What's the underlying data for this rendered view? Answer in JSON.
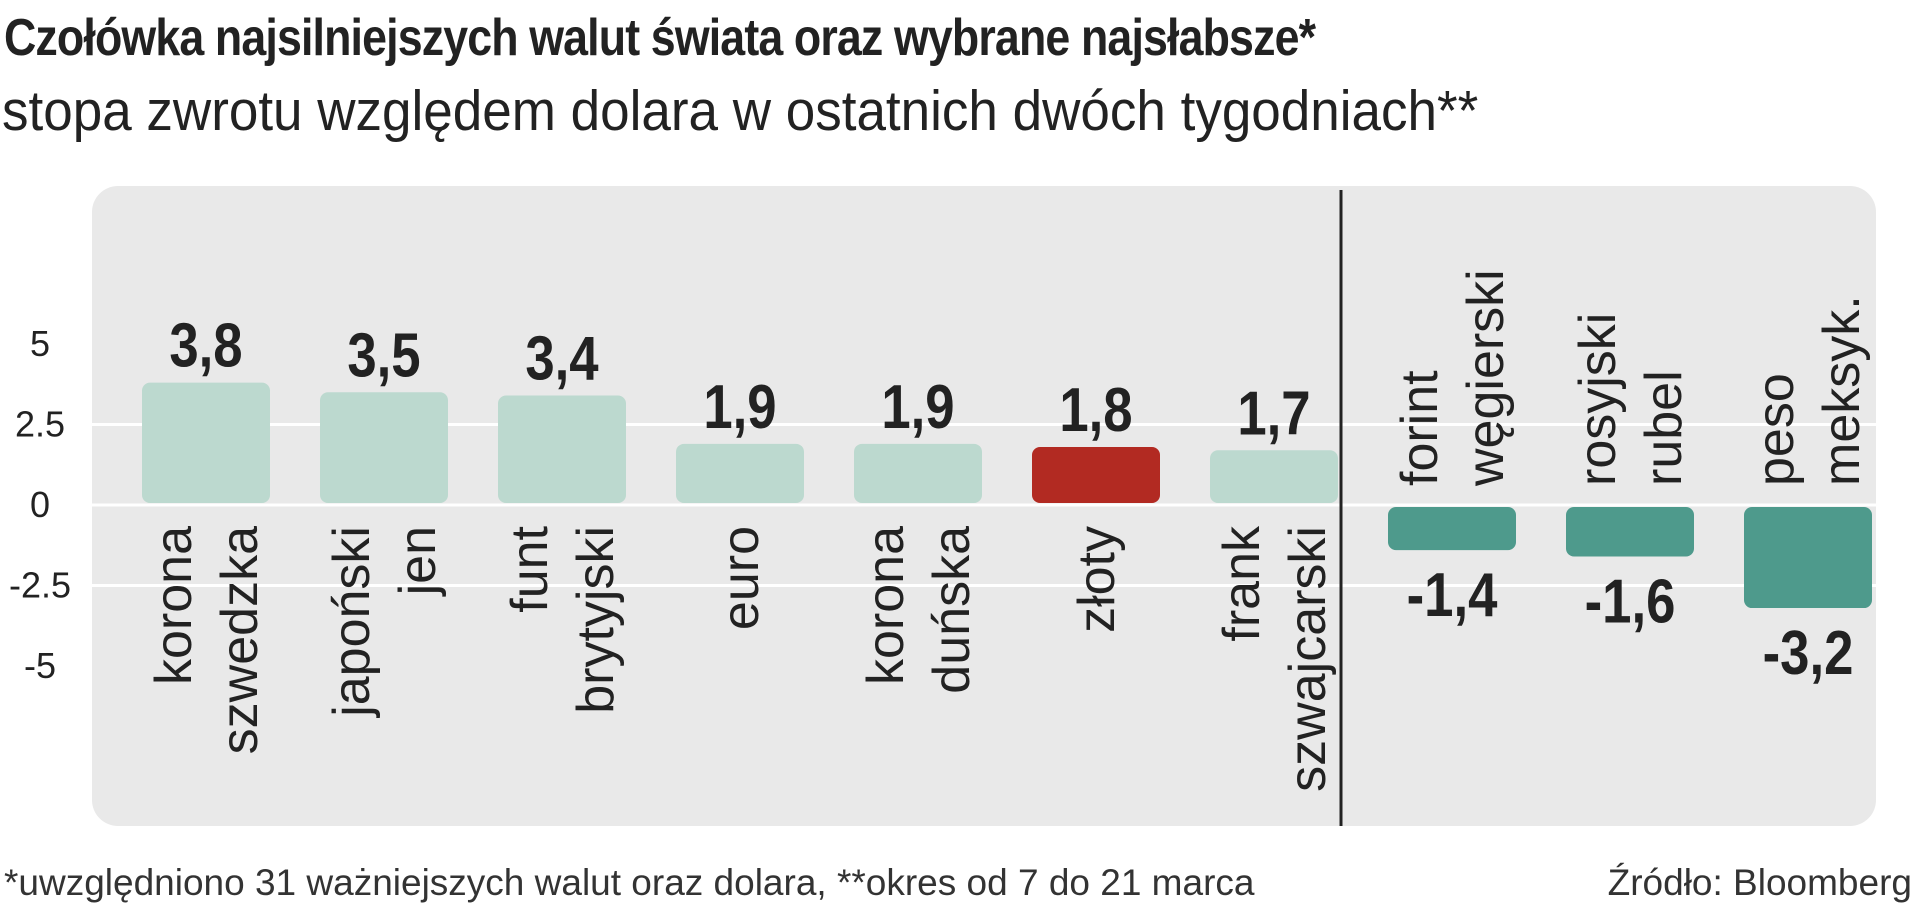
{
  "header": {
    "title": "Czołówka najsilniejszych walut świata oraz wybrane najsłabsze*",
    "subtitle": "stopa zwrotu względem dolara w ostatnich dwóch tygodniach**"
  },
  "footer": {
    "note": "*uwzględniono 31 ważniejszych walut oraz dolara, **okres od 7 do 21 marca",
    "source": "Źródło: Bloomberg"
  },
  "chart_data": {
    "type": "bar",
    "title": "Czołówka najsilniejszych walut świata oraz wybrane najsłabsze*",
    "subtitle": "stopa zwrotu względem dolara w ostatnich dwóch tygodniach**",
    "xlabel": "",
    "ylabel": "",
    "ylim": [
      -5,
      5
    ],
    "yticks": [
      "5",
      "2.5",
      "0",
      "-2.5",
      "-5"
    ],
    "ytick_values": [
      5,
      2.5,
      0,
      -2.5,
      -5
    ],
    "grid": true,
    "categories": [
      [
        "korona",
        "szwedzka"
      ],
      [
        "japoński",
        "jen"
      ],
      [
        "funt",
        "brytyjski"
      ],
      [
        "euro"
      ],
      [
        "korona",
        "duńska"
      ],
      [
        "złoty"
      ],
      [
        "frank",
        "szwajcarski"
      ],
      [
        "forint",
        "węgierski"
      ],
      [
        "rosyjski",
        "rubel"
      ],
      [
        "peso",
        "meksyk."
      ]
    ],
    "values": [
      3.8,
      3.5,
      3.4,
      1.9,
      1.9,
      1.8,
      1.7,
      -1.4,
      -1.6,
      -3.2
    ],
    "value_labels": [
      "3,8",
      "3,5",
      "3,4",
      "1,9",
      "1,9",
      "1,8",
      "1,7",
      "-1,4",
      "-1,6",
      "-3,2"
    ],
    "groups": [
      "strongest",
      "strongest",
      "strongest",
      "strongest",
      "strongest",
      "poland",
      "strongest",
      "weakest",
      "weakest",
      "weakest"
    ],
    "colors": {
      "strongest": "#bcd9cf",
      "poland": "#b22a22",
      "weakest": "#4e9a8c",
      "panel": "#e9e9e9",
      "grid": "#ffffff",
      "separator": "#222222",
      "text": "#222222"
    }
  }
}
